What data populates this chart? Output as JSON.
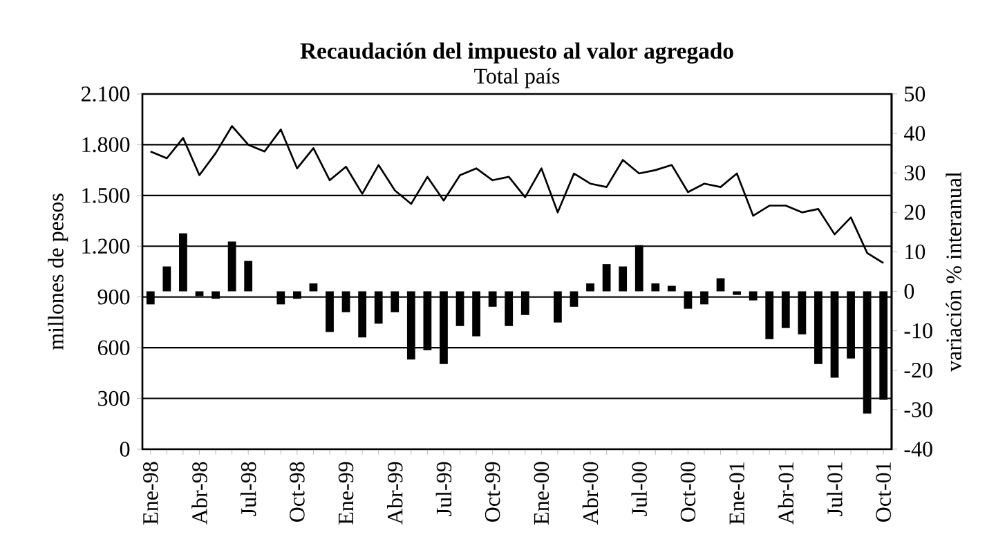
{
  "chart_data": {
    "type": "line",
    "title": "Recaudación del impuesto al valor agregado",
    "subtitle": "Total país",
    "ylabel": "millones de pesos",
    "y2label": "variación % interanual",
    "categories": [
      "Ene-98",
      null,
      null,
      "Abr-98",
      null,
      null,
      "Jul-98",
      null,
      null,
      "Oct-98",
      null,
      null,
      "Ene-99",
      null,
      null,
      "Abr-99",
      null,
      null,
      "Jul-99",
      null,
      null,
      "Oct-99",
      null,
      null,
      "Ene-00",
      null,
      null,
      "Abr-00",
      null,
      null,
      "Jul-00",
      null,
      null,
      "Oct-00",
      null,
      null,
      "Ene-01",
      null,
      null,
      "Abr-01",
      null,
      null,
      "Jul-01",
      null,
      null,
      "Oct-01"
    ],
    "series": [
      {
        "color": "#000000",
        "values": [
          1760,
          1720,
          1840,
          1620,
          1750,
          1910,
          1800,
          1760,
          1890,
          1660,
          1780,
          1590,
          1670,
          1510,
          1680,
          1530,
          1450,
          1610,
          1470,
          1620,
          1660,
          1590,
          1610,
          1490,
          1660,
          1400,
          1630,
          1570,
          1550,
          1710,
          1630,
          1650,
          1680,
          1520,
          1570,
          1550,
          1630,
          1380,
          1440,
          1440,
          1400,
          1420,
          1270,
          1370,
          1160,
          1100
        ]
      },
      {
        "type": "bar",
        "axis": "y2",
        "color": "#000000",
        "values": [
          -3.3,
          6.3,
          14.7,
          -1.2,
          -1.9,
          12.6,
          7.7,
          0,
          -3.3,
          -1.9,
          2.0,
          -10.3,
          -5.3,
          -11.7,
          -8.2,
          -5.3,
          -17.3,
          -14.9,
          -18.4,
          -8.8,
          -11.4,
          -3.9,
          -8.8,
          -6.0,
          0,
          -7.9,
          -3.9,
          2.0,
          6.9,
          6.3,
          11.7,
          2.0,
          1.4,
          -4.4,
          -3.3,
          3.3,
          -0.9,
          -2.3,
          -12.1,
          -9.3,
          -10.9,
          -18.4,
          -21.9,
          -17.0,
          -31.0,
          -27.5
        ]
      }
    ],
    "ylim": [
      0,
      2100
    ],
    "yticks": [
      0,
      300,
      600,
      900,
      {
        "value": 1200,
        "label": "1.200"
      },
      {
        "value": 1500,
        "label": "1.500"
      },
      {
        "value": 1800,
        "label": "1.800"
      },
      {
        "value": 2100,
        "label": "2.100"
      }
    ],
    "y2lim": [
      -40,
      50
    ],
    "y2ticks": [
      -40,
      -30,
      -20,
      -10,
      0,
      10,
      20,
      30,
      40,
      50
    ],
    "grid": "y"
  }
}
